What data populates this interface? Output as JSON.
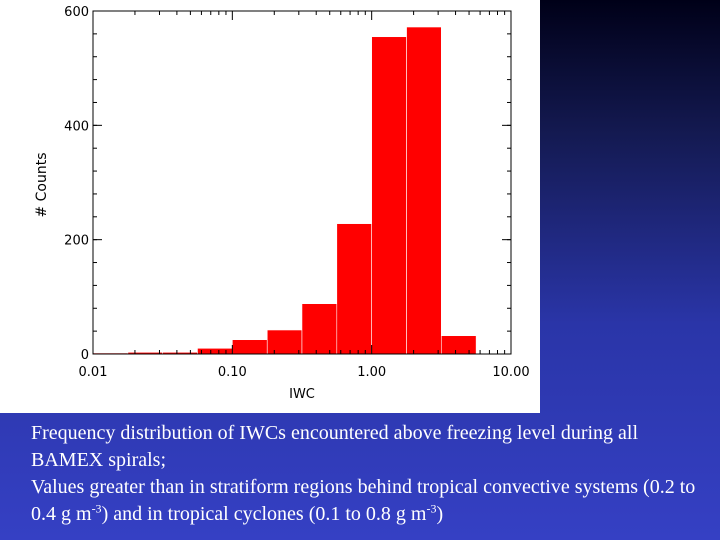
{
  "chart_data": {
    "type": "bar",
    "title": "",
    "xlabel": "IWC",
    "ylabel": "# Counts",
    "x_scale": "log",
    "xlim": [
      0.01,
      10.0
    ],
    "ylim": [
      0,
      600
    ],
    "x_tick_labels": [
      "0.01",
      "0.10",
      "1.00",
      "10.00"
    ],
    "x_tick_values": [
      0.01,
      0.1,
      1.0,
      10.0
    ],
    "y_tick_labels": [
      "0",
      "200",
      "400",
      "600"
    ],
    "y_tick_values": [
      0,
      200,
      400,
      600
    ],
    "bar_color": "#ff0000",
    "bins": [
      {
        "x0": 0.01,
        "x1": 0.0178,
        "value": 1
      },
      {
        "x0": 0.0178,
        "x1": 0.0316,
        "value": 3
      },
      {
        "x0": 0.0316,
        "x1": 0.0562,
        "value": 3
      },
      {
        "x0": 0.0562,
        "x1": 0.1,
        "value": 10
      },
      {
        "x0": 0.1,
        "x1": 0.178,
        "value": 25
      },
      {
        "x0": 0.178,
        "x1": 0.316,
        "value": 42
      },
      {
        "x0": 0.316,
        "x1": 0.562,
        "value": 88
      },
      {
        "x0": 0.562,
        "x1": 1.0,
        "value": 228
      },
      {
        "x0": 1.0,
        "x1": 1.78,
        "value": 555
      },
      {
        "x0": 1.78,
        "x1": 3.16,
        "value": 572
      },
      {
        "x0": 3.16,
        "x1": 5.62,
        "value": 32
      }
    ]
  },
  "caption": {
    "line1": "Frequency distribution of IWCs encountered above freezing level during all BAMEX spirals;",
    "line2_a": "Values greater than in stratiform regions behind tropical convective systems (0.2 to 0.4 g m",
    "sup1": "-3",
    "line2_b": ") and in tropical cyclones (0.1 to 0.8 g m",
    "sup2": "-3",
    "line2_c": ")"
  }
}
